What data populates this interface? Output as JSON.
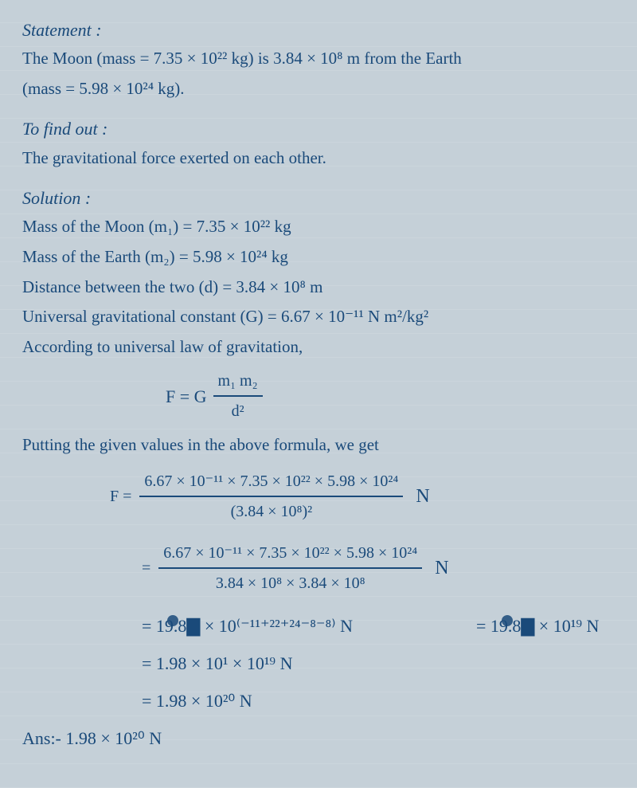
{
  "text_color": "#1a4a7a",
  "background_color": "#c5d0d8",
  "statement": {
    "heading": "Statement :",
    "line1": "The Moon (mass = 7.35 × 10²² kg) is 3.84 × 10⁸ m from the Earth",
    "line2": "(mass = 5.98 × 10²⁴ kg)."
  },
  "tofind": {
    "heading": "To find out :",
    "line1": "The gravitational force exerted on each other."
  },
  "solution": {
    "heading": "Solution :",
    "m1": "Mass of the Moon (m₁) = 7.35 × 10²² kg",
    "m2": "Mass of the Earth (m₂) = 5.98 × 10²⁴ kg",
    "d": "Distance between the two (d) = 3.84 × 10⁸ m",
    "G": "Universal gravitational constant (G) = 6.67 × 10⁻¹¹ N m²/kg²",
    "law": "According to universal law of gravitation,",
    "formula_lhs": "F = G",
    "formula_num": "m₁ m₂",
    "formula_den": "d²",
    "putting": "Putting the given values in the above formula, we get",
    "step1_lhs": "F =",
    "step1_num": "6.67 × 10⁻¹¹ × 7.35 × 10²² × 5.98 × 10²⁴",
    "step1_den": "(3.84 × 10⁸)²",
    "step1_unit": "N",
    "step2_eq": "=",
    "step2_num": "6.67 × 10⁻¹¹ × 7.35 × 10²² × 5.98 × 10²⁴",
    "step2_den": "3.84 × 10⁸ × 3.84 × 10⁸",
    "step2_unit": "N",
    "step3": "= 19.8▇ × 10⁽⁻¹¹⁺²²⁺²⁴⁻⁸⁻⁸⁾ N",
    "step4": "= 19.8▇ × 10¹⁹ N",
    "step5": "= 1.98 × 10¹ × 10¹⁹ N",
    "step6": "= 1.98 × 10²⁰ N"
  },
  "answer": "Ans:- 1.98 × 10²⁰ N"
}
